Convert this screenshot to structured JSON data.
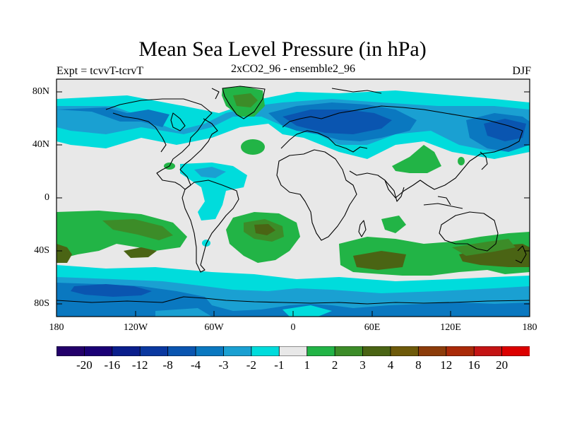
{
  "header": {
    "title": "Mean Sea Level Pressure (in hPa)",
    "left": "Expt = tcvvT-tcrvT",
    "center": "2xCO2_96 - ensemble2_96",
    "right": "DJF"
  },
  "axes": {
    "lat_labels": [
      "80N",
      "40N",
      "0",
      "40S",
      "80S"
    ],
    "lon_labels": [
      "180",
      "120W",
      "60W",
      "0",
      "60E",
      "120E",
      "180"
    ]
  },
  "colorbar": {
    "labels": [
      "-20",
      "-16",
      "-12",
      "-8",
      "-4",
      "-3",
      "-2",
      "-1",
      "1",
      "2",
      "3",
      "4",
      "8",
      "12",
      "16",
      "20"
    ],
    "colors": [
      "#23006a",
      "#1a0075",
      "#0a1e8c",
      "#0a38a0",
      "#0a55b0",
      "#0a78c0",
      "#1aa0d2",
      "#00dcdc",
      "#e8e8e8",
      "#22b446",
      "#3c8c28",
      "#4a6414",
      "#6e5a0a",
      "#8c3c0a",
      "#aa2a08",
      "#c41414",
      "#dc0000"
    ]
  },
  "map_colors": {
    "land_outline": "#000000",
    "neutral": "#e8e8e8",
    "cyan": "#00dcdc",
    "light_blue": "#1aa0d2",
    "blue": "#0a78c0",
    "dark_blue": "#0a55b0",
    "green": "#22b446",
    "dark_green": "#3c8c28",
    "olive": "#4a6414",
    "brown": "#6e5a0a"
  }
}
